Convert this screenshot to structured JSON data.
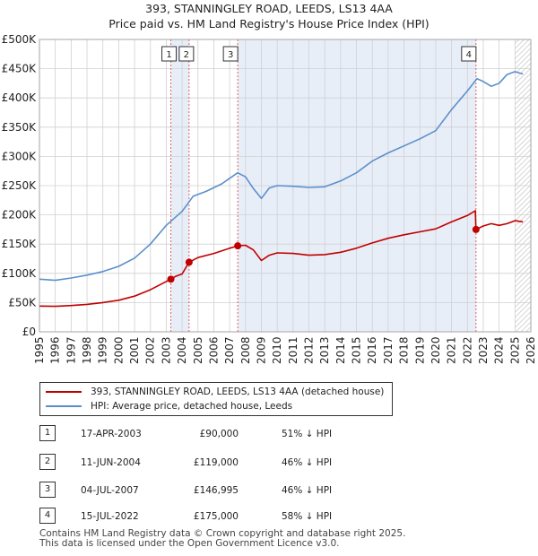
{
  "header": {
    "title_line1": "393, STANNINGLEY ROAD, LEEDS, LS13 4AA",
    "title_line2": "Price paid vs. HM Land Registry's House Price Index (HPI)"
  },
  "colors": {
    "price_line": "#c00000",
    "hpi_line": "#5b8fcc",
    "shade": "#e8eef8",
    "grid": "#d0d0d0",
    "marker_line": "#e06060"
  },
  "chart_data": {
    "type": "line",
    "title": "393, STANNINGLEY ROAD, LEEDS, LS13 4AA",
    "subtitle": "Price paid vs. HM Land Registry's House Price Index (HPI)",
    "xlabel": "",
    "ylabel": "",
    "xlim": [
      1995,
      2026
    ],
    "ylim": [
      0,
      500000
    ],
    "grid": true,
    "x_ticks": [
      "1995",
      "1996",
      "1997",
      "1998",
      "1999",
      "2000",
      "2001",
      "2002",
      "2003",
      "2004",
      "2005",
      "2006",
      "2007",
      "2008",
      "2009",
      "2010",
      "2011",
      "2012",
      "2013",
      "2014",
      "2015",
      "2016",
      "2017",
      "2018",
      "2019",
      "2020",
      "2021",
      "2022",
      "2023",
      "2024",
      "2025",
      "2026"
    ],
    "y_ticks": [
      {
        "value": 0,
        "label": "£0"
      },
      {
        "value": 50000,
        "label": "£50K"
      },
      {
        "value": 100000,
        "label": "£100K"
      },
      {
        "value": 150000,
        "label": "£150K"
      },
      {
        "value": 200000,
        "label": "£200K"
      },
      {
        "value": 250000,
        "label": "£250K"
      },
      {
        "value": 300000,
        "label": "£300K"
      },
      {
        "value": 350000,
        "label": "£350K"
      },
      {
        "value": 400000,
        "label": "£400K"
      },
      {
        "value": 450000,
        "label": "£450K"
      },
      {
        "value": 500000,
        "label": "£500K"
      }
    ],
    "shaded_ranges": [
      [
        2003.29,
        2004.44
      ],
      [
        2007.51,
        2022.54
      ]
    ],
    "hatched_from": 2025.0,
    "series": [
      {
        "name": "393, STANNINGLEY ROAD, LEEDS, LS13 4AA (detached house)",
        "color": "#c00000",
        "points": [
          [
            1995.0,
            44000
          ],
          [
            1996.0,
            43500
          ],
          [
            1997.0,
            45000
          ],
          [
            1998.0,
            47000
          ],
          [
            1999.0,
            50000
          ],
          [
            2000.0,
            54000
          ],
          [
            2001.0,
            61000
          ],
          [
            2002.0,
            72000
          ],
          [
            2003.0,
            86000
          ],
          [
            2003.29,
            90000
          ],
          [
            2003.6,
            95000
          ],
          [
            2004.0,
            99000
          ],
          [
            2004.44,
            119000
          ],
          [
            2005.0,
            127000
          ],
          [
            2006.0,
            134000
          ],
          [
            2007.0,
            143000
          ],
          [
            2007.51,
            146995
          ],
          [
            2008.0,
            148000
          ],
          [
            2008.5,
            140000
          ],
          [
            2009.0,
            122000
          ],
          [
            2009.5,
            131000
          ],
          [
            2010.0,
            135000
          ],
          [
            2011.0,
            134000
          ],
          [
            2012.0,
            131000
          ],
          [
            2013.0,
            132000
          ],
          [
            2014.0,
            136000
          ],
          [
            2015.0,
            143000
          ],
          [
            2016.0,
            152000
          ],
          [
            2017.0,
            160000
          ],
          [
            2018.0,
            166000
          ],
          [
            2019.0,
            171000
          ],
          [
            2020.0,
            176000
          ],
          [
            2021.0,
            188000
          ],
          [
            2022.0,
            199000
          ],
          [
            2022.5,
            207000
          ],
          [
            2022.54,
            175000
          ],
          [
            2023.0,
            181000
          ],
          [
            2023.5,
            185000
          ],
          [
            2024.0,
            182000
          ],
          [
            2024.5,
            185000
          ],
          [
            2025.0,
            190000
          ],
          [
            2025.5,
            188000
          ]
        ]
      },
      {
        "name": "HPI: Average price, detached house, Leeds",
        "color": "#5b8fcc",
        "points": [
          [
            1995.0,
            90000
          ],
          [
            1996.0,
            88000
          ],
          [
            1997.0,
            92000
          ],
          [
            1998.0,
            97000
          ],
          [
            1999.0,
            103000
          ],
          [
            2000.0,
            112000
          ],
          [
            2001.0,
            126000
          ],
          [
            2002.0,
            150000
          ],
          [
            2003.0,
            182000
          ],
          [
            2004.0,
            206000
          ],
          [
            2004.7,
            232000
          ],
          [
            2005.5,
            240000
          ],
          [
            2006.5,
            253000
          ],
          [
            2007.5,
            272000
          ],
          [
            2008.0,
            265000
          ],
          [
            2008.5,
            245000
          ],
          [
            2009.0,
            228000
          ],
          [
            2009.5,
            246000
          ],
          [
            2010.0,
            250000
          ],
          [
            2011.0,
            249000
          ],
          [
            2012.0,
            247000
          ],
          [
            2013.0,
            248000
          ],
          [
            2014.0,
            258000
          ],
          [
            2015.0,
            272000
          ],
          [
            2016.0,
            292000
          ],
          [
            2017.0,
            306000
          ],
          [
            2018.0,
            318000
          ],
          [
            2019.0,
            330000
          ],
          [
            2020.0,
            344000
          ],
          [
            2021.0,
            380000
          ],
          [
            2022.0,
            412000
          ],
          [
            2022.6,
            433000
          ],
          [
            2023.0,
            428000
          ],
          [
            2023.5,
            420000
          ],
          [
            2024.0,
            425000
          ],
          [
            2024.5,
            440000
          ],
          [
            2025.0,
            445000
          ],
          [
            2025.5,
            441000
          ]
        ]
      }
    ],
    "sales": [
      {
        "num": "1",
        "x": 2003.29,
        "price": 90000
      },
      {
        "num": "2",
        "x": 2004.44,
        "price": 119000
      },
      {
        "num": "3",
        "x": 2007.51,
        "price": 146995
      },
      {
        "num": "4",
        "x": 2022.54,
        "price": 175000
      }
    ]
  },
  "legend": {
    "price_label": "393, STANNINGLEY ROAD, LEEDS, LS13 4AA (detached house)",
    "hpi_label": "HPI: Average price, detached house, Leeds"
  },
  "transactions": [
    {
      "num": "1",
      "date": "17-APR-2003",
      "price": "£90,000",
      "hpi": "51% ↓ HPI"
    },
    {
      "num": "2",
      "date": "11-JUN-2004",
      "price": "£119,000",
      "hpi": "46% ↓ HPI"
    },
    {
      "num": "3",
      "date": "04-JUL-2007",
      "price": "£146,995",
      "hpi": "46% ↓ HPI"
    },
    {
      "num": "4",
      "date": "15-JUL-2022",
      "price": "£175,000",
      "hpi": "58% ↓ HPI"
    }
  ],
  "footer": {
    "line1": "Contains HM Land Registry data © Crown copyright and database right 2025.",
    "line2": "This data is licensed under the Open Government Licence v3.0."
  }
}
